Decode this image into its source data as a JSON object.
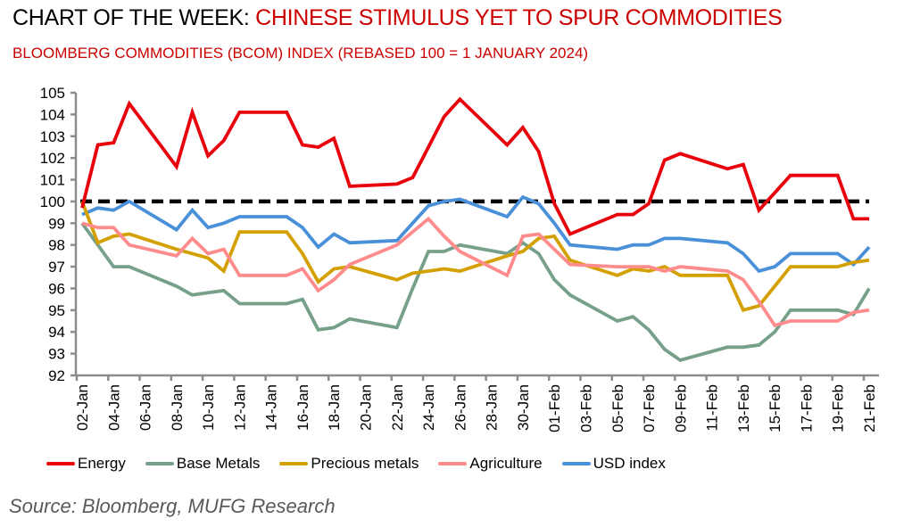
{
  "header": {
    "title_prefix": "CHART OF THE WEEK: ",
    "title_accent": "CHINESE STIMULUS YET TO SPUR COMMODITIES",
    "subtitle": "BLOOMBERG COMMODITIES (BCOM) INDEX (REBASED 100 = 1 JANUARY 2024)"
  },
  "source": "Source: Bloomberg, MUFG Research",
  "chart_data": {
    "type": "line",
    "title": "BLOOMBERG COMMODITIES (BCOM) INDEX (REBASED 100 = 1 JANUARY 2024)",
    "xlabel": "",
    "ylabel": "",
    "ylim": [
      92,
      105
    ],
    "yticks": [
      92,
      93,
      94,
      95,
      96,
      97,
      98,
      99,
      100,
      101,
      102,
      103,
      104,
      105
    ],
    "xtick_labels": [
      "02-Jan",
      "04-Jan",
      "06-Jan",
      "08-Jan",
      "10-Jan",
      "12-Jan",
      "14-Jan",
      "16-Jan",
      "18-Jan",
      "20-Jan",
      "22-Jan",
      "24-Jan",
      "26-Jan",
      "28-Jan",
      "30-Jan",
      "01-Feb",
      "03-Feb",
      "05-Feb",
      "07-Feb",
      "09-Feb",
      "11-Feb",
      "13-Feb",
      "15-Feb",
      "17-Feb",
      "19-Feb",
      "21-Feb"
    ],
    "x_day_range": [
      0,
      50
    ],
    "x_days": [
      0,
      1,
      2,
      3,
      6,
      7,
      8,
      9,
      10,
      13,
      14,
      15,
      16,
      17,
      20,
      21,
      22,
      23,
      24,
      27,
      28,
      29,
      30,
      31,
      34,
      35,
      36,
      37,
      38,
      41,
      42,
      43,
      44,
      45,
      48,
      49,
      50
    ],
    "x": [
      "02-Jan",
      "03-Jan",
      "04-Jan",
      "05-Jan",
      "08-Jan",
      "09-Jan",
      "10-Jan",
      "11-Jan",
      "12-Jan",
      "15-Jan",
      "16-Jan",
      "17-Jan",
      "18-Jan",
      "19-Jan",
      "22-Jan",
      "23-Jan",
      "24-Jan",
      "25-Jan",
      "26-Jan",
      "29-Jan",
      "30-Jan",
      "31-Jan",
      "01-Feb",
      "02-Feb",
      "05-Feb",
      "06-Feb",
      "07-Feb",
      "08-Feb",
      "09-Feb",
      "12-Feb",
      "13-Feb",
      "14-Feb",
      "15-Feb",
      "16-Feb",
      "19-Feb",
      "20-Feb",
      "21-Feb"
    ],
    "reference_line": {
      "value": 100,
      "style": "dashed",
      "color": "#000000"
    },
    "grid": false,
    "legend_position": "bottom",
    "series": [
      {
        "name": "Energy",
        "color": "#e8000b",
        "values": [
          99.7,
          102.6,
          102.7,
          104.5,
          101.6,
          104.1,
          102.1,
          102.8,
          104.1,
          104.1,
          102.6,
          102.5,
          102.9,
          100.7,
          100.8,
          101.1,
          102.5,
          103.9,
          104.7,
          102.6,
          103.4,
          102.3,
          99.9,
          98.5,
          99.4,
          99.4,
          99.9,
          101.9,
          102.2,
          101.5,
          101.7,
          99.6,
          100.4,
          101.2,
          101.2,
          99.2,
          99.2
        ]
      },
      {
        "name": "Base Metals",
        "color": "#76a08a",
        "values": [
          99.0,
          98.0,
          97.0,
          97.0,
          96.1,
          95.7,
          95.8,
          95.9,
          95.3,
          95.3,
          95.5,
          94.1,
          94.2,
          94.6,
          94.2,
          96.0,
          97.7,
          97.7,
          98.0,
          97.6,
          98.1,
          97.6,
          96.4,
          95.7,
          94.5,
          94.7,
          94.1,
          93.2,
          92.7,
          93.3,
          93.3,
          93.4,
          94.0,
          95.0,
          95.0,
          94.8,
          96.0
        ]
      },
      {
        "name": "Precious metals",
        "color": "#d4a000",
        "values": [
          100.0,
          98.1,
          98.4,
          98.5,
          97.8,
          97.6,
          97.4,
          96.8,
          98.6,
          98.6,
          97.6,
          96.3,
          96.9,
          97.0,
          96.4,
          96.7,
          96.8,
          96.9,
          96.8,
          97.5,
          97.7,
          98.3,
          98.4,
          97.3,
          96.6,
          96.9,
          96.8,
          97.0,
          96.6,
          96.6,
          95.0,
          95.2,
          96.1,
          97.0,
          97.0,
          97.2,
          97.3
        ]
      },
      {
        "name": "Agriculture",
        "color": "#ff8c8c",
        "values": [
          99.0,
          98.8,
          98.8,
          98.0,
          97.5,
          98.3,
          97.6,
          97.8,
          96.6,
          96.6,
          96.9,
          95.9,
          96.4,
          97.1,
          98.0,
          98.6,
          99.2,
          98.4,
          97.7,
          96.6,
          98.4,
          98.5,
          97.8,
          97.1,
          97.0,
          97.0,
          97.0,
          96.8,
          97.0,
          96.8,
          96.4,
          95.4,
          94.3,
          94.5,
          94.5,
          94.9,
          95.0
        ]
      },
      {
        "name": "USD index",
        "color": "#4a90d9",
        "values": [
          99.4,
          99.7,
          99.6,
          100.0,
          98.7,
          99.6,
          98.8,
          99.0,
          99.3,
          99.3,
          98.8,
          97.9,
          98.5,
          98.1,
          98.2,
          99.0,
          99.8,
          100.0,
          100.1,
          99.3,
          100.2,
          99.9,
          99.0,
          98.0,
          97.8,
          98.0,
          98.0,
          98.3,
          98.3,
          98.1,
          97.6,
          96.8,
          97.0,
          97.6,
          97.6,
          97.1,
          97.9
        ]
      }
    ]
  }
}
